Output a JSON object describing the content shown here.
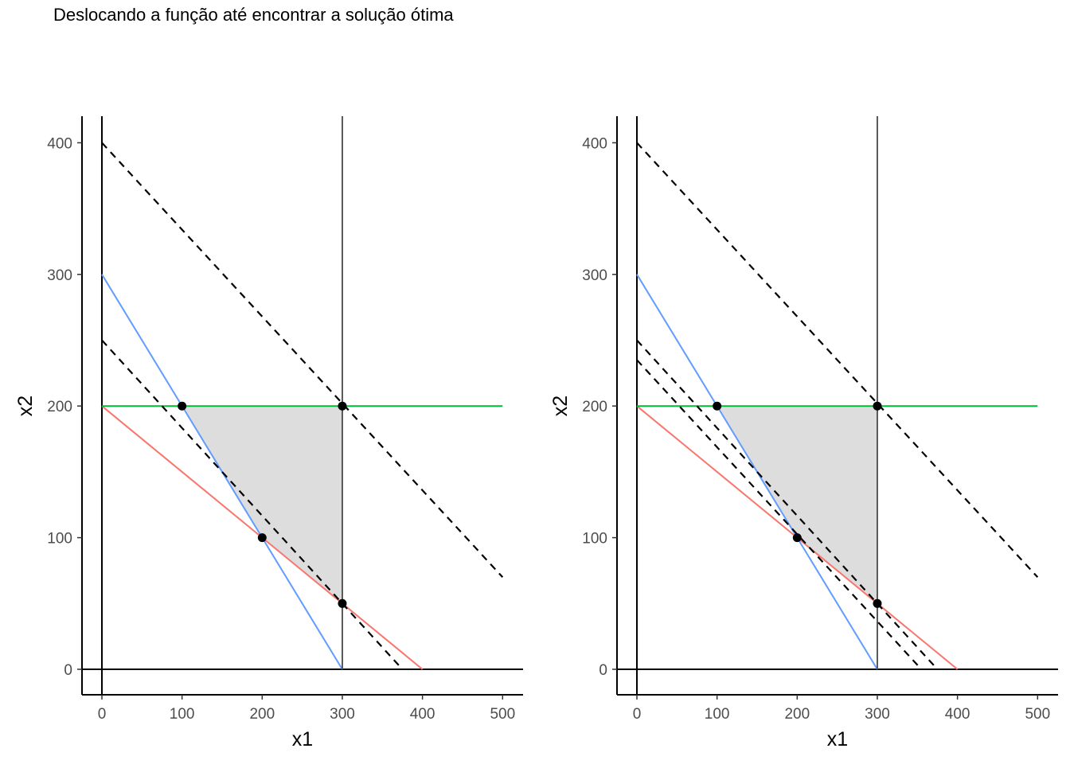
{
  "title": "Deslocando a função até encontrar a solução ótima",
  "colors": {
    "restriction_red": "#F8766D",
    "restriction_blue": "#619CFF",
    "restriction_green": "#00BA38",
    "feasible_fill": "#DDDDDD",
    "objective_line": "#000000",
    "vertical_line": "#595959"
  },
  "chart_data": [
    {
      "type": "line",
      "title": "",
      "xlabel": "x1",
      "ylabel": "x2",
      "xlim": [
        0,
        500
      ],
      "ylim": [
        0,
        400
      ],
      "xticks": [
        0,
        100,
        200,
        300,
        400,
        500
      ],
      "yticks": [
        0,
        100,
        200,
        300,
        400
      ],
      "grid": false,
      "legend": "none",
      "feasible_region": [
        [
          100,
          200
        ],
        [
          300,
          200
        ],
        [
          300,
          50
        ],
        [
          200,
          100
        ]
      ],
      "constraint_lines": [
        {
          "color": "red",
          "points": [
            [
              0,
              200
            ],
            [
              400,
              0
            ]
          ]
        },
        {
          "color": "blue",
          "points": [
            [
              0,
              300
            ],
            [
              300,
              0
            ]
          ]
        },
        {
          "color": "green",
          "points": [
            [
              0,
              200
            ],
            [
              500,
              200
            ]
          ]
        },
        {
          "color": "gray",
          "points": [
            [
              300,
              0
            ],
            [
              300,
              420
            ]
          ]
        }
      ],
      "objective_lines": [
        {
          "points": [
            [
              0,
              400
            ],
            [
              500,
              70
            ]
          ],
          "style": "dashed"
        },
        {
          "points": [
            [
              0,
              250
            ],
            [
              375,
              0
            ]
          ],
          "style": "dashed"
        }
      ],
      "points": [
        [
          100,
          200
        ],
        [
          300,
          200
        ],
        [
          200,
          100
        ],
        [
          300,
          50
        ]
      ]
    },
    {
      "type": "line",
      "title": "",
      "xlabel": "x1",
      "ylabel": "x2",
      "xlim": [
        0,
        500
      ],
      "ylim": [
        0,
        400
      ],
      "xticks": [
        0,
        100,
        200,
        300,
        400,
        500
      ],
      "yticks": [
        0,
        100,
        200,
        300,
        400
      ],
      "grid": false,
      "legend": "none",
      "feasible_region": [
        [
          100,
          200
        ],
        [
          300,
          200
        ],
        [
          300,
          50
        ],
        [
          200,
          100
        ]
      ],
      "constraint_lines": [
        {
          "color": "red",
          "points": [
            [
              0,
              200
            ],
            [
              400,
              0
            ]
          ]
        },
        {
          "color": "blue",
          "points": [
            [
              0,
              300
            ],
            [
              300,
              0
            ]
          ]
        },
        {
          "color": "green",
          "points": [
            [
              0,
              200
            ],
            [
              500,
              200
            ]
          ]
        },
        {
          "color": "gray",
          "points": [
            [
              300,
              0
            ],
            [
              300,
              420
            ]
          ]
        }
      ],
      "objective_lines": [
        {
          "points": [
            [
              0,
              400
            ],
            [
              500,
              70
            ]
          ],
          "style": "dashed"
        },
        {
          "points": [
            [
              0,
              250
            ],
            [
              375,
              0
            ]
          ],
          "style": "dashed"
        },
        {
          "points": [
            [
              0,
              235
            ],
            [
              355,
              0
            ]
          ],
          "style": "dashed"
        }
      ],
      "points": [
        [
          100,
          200
        ],
        [
          300,
          200
        ],
        [
          200,
          100
        ],
        [
          300,
          50
        ]
      ]
    }
  ]
}
